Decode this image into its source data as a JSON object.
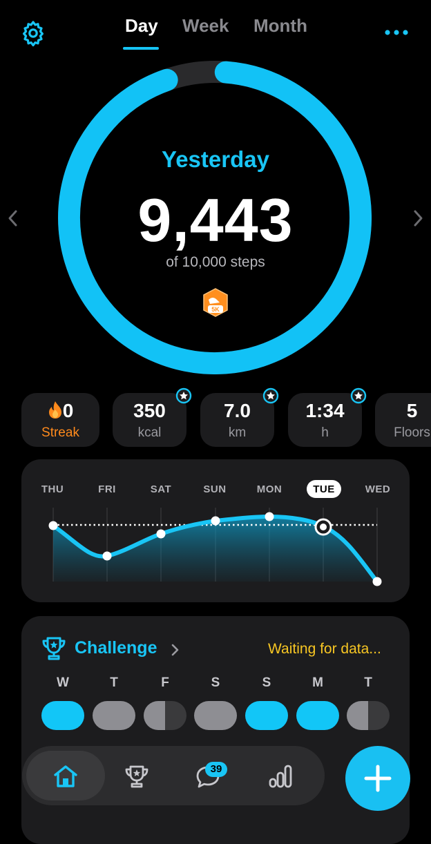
{
  "header": {
    "tabs": [
      {
        "label": "Day",
        "active": true
      },
      {
        "label": "Week",
        "active": false
      },
      {
        "label": "Month",
        "active": false
      }
    ]
  },
  "summary": {
    "title": "Yesterday",
    "steps": "9,443",
    "goal_text": "of 10,000 steps",
    "badge_text": "5K",
    "progress": 0.9443
  },
  "stats": [
    {
      "value": "0",
      "label": "Streak",
      "icon": "flame-icon",
      "has_star": false
    },
    {
      "value": "350",
      "label": "kcal",
      "has_star": true
    },
    {
      "value": "7.0",
      "label": "km",
      "has_star": true
    },
    {
      "value": "1:34",
      "label": "h",
      "has_star": true
    },
    {
      "value": "5",
      "label": "Floors",
      "has_star": false
    }
  ],
  "week_chart": {
    "days": [
      "THU",
      "FRI",
      "SAT",
      "SUN",
      "MON",
      "TUE",
      "WED"
    ],
    "selected": "TUE"
  },
  "challenge": {
    "title": "Challenge",
    "status": "Waiting for data...",
    "days": [
      {
        "label": "W",
        "state": "full"
      },
      {
        "label": "T",
        "state": "grey"
      },
      {
        "label": "F",
        "state": "half"
      },
      {
        "label": "S",
        "state": "grey"
      },
      {
        "label": "S",
        "state": "full"
      },
      {
        "label": "M",
        "state": "full"
      },
      {
        "label": "T",
        "state": "half"
      }
    ]
  },
  "tabbar": {
    "items": [
      "home-icon",
      "trophy-icon",
      "chat-icon",
      "stats-icon"
    ],
    "notification_count": "39"
  },
  "colors": {
    "accent": "#19c5f5",
    "streak": "#ff8a1c",
    "status": "#f7c623",
    "card": "#1c1c1e"
  }
}
